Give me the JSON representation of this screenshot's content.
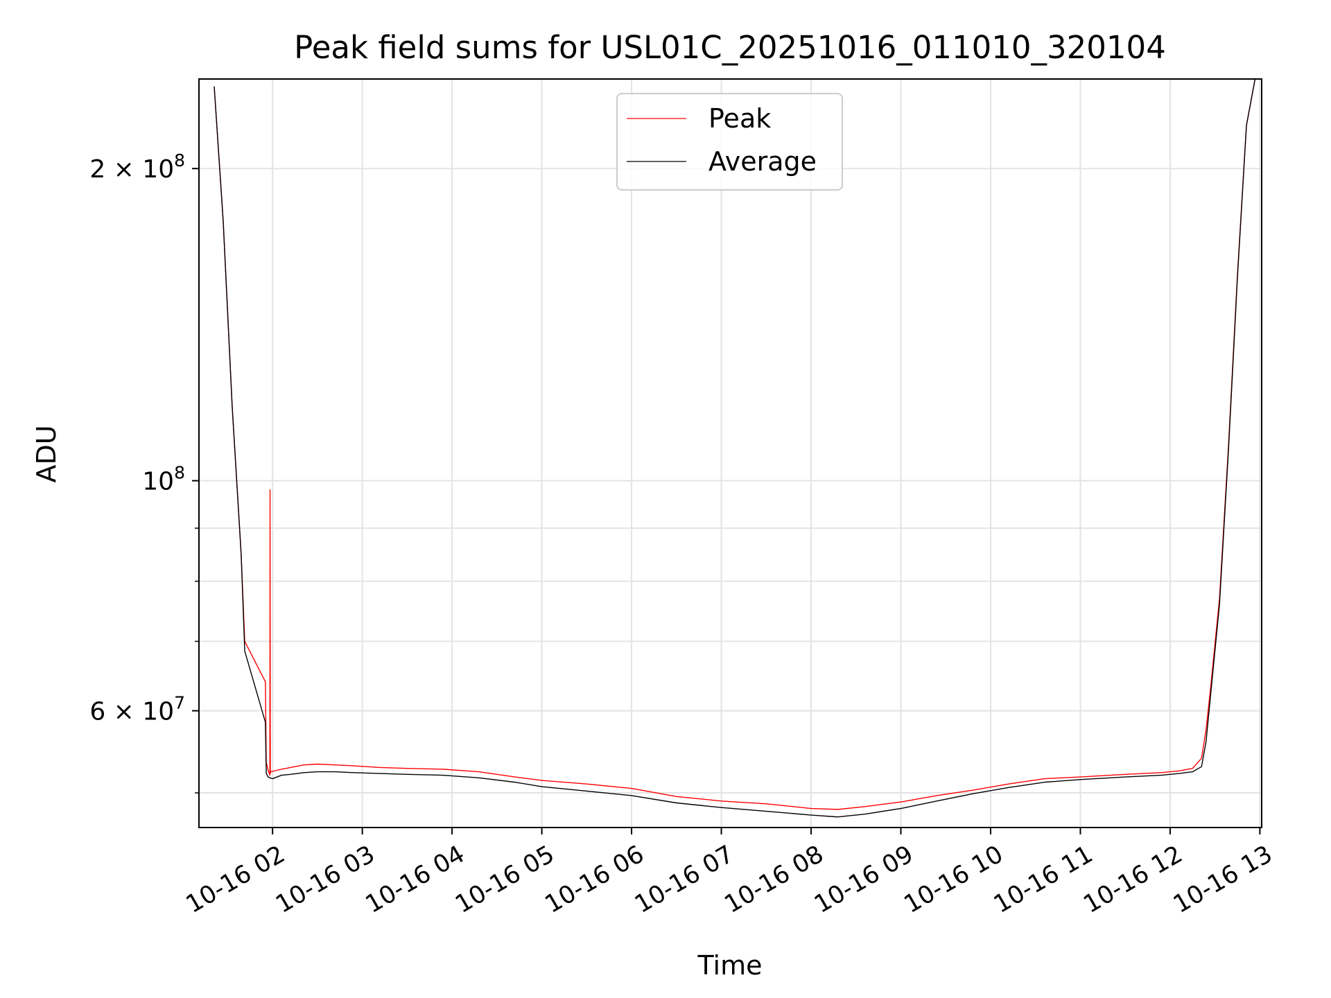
{
  "chart_data": {
    "type": "line",
    "title": "Peak field sums for USL01C_20251016_011010_320104",
    "xlabel": "Time",
    "ylabel": "ADU",
    "yscale": "log",
    "grid": true,
    "legend_position": "top-center",
    "x_unit": "hours since 10-16 00:00",
    "xlim": [
      1.18,
      13.02
    ],
    "ylim": [
      46300000,
      244000000
    ],
    "x_ticks": [
      {
        "value": 2,
        "label": "10-16 02"
      },
      {
        "value": 3,
        "label": "10-16 03"
      },
      {
        "value": 4,
        "label": "10-16 04"
      },
      {
        "value": 5,
        "label": "10-16 05"
      },
      {
        "value": 6,
        "label": "10-16 06"
      },
      {
        "value": 7,
        "label": "10-16 07"
      },
      {
        "value": 8,
        "label": "10-16 08"
      },
      {
        "value": 9,
        "label": "10-16 09"
      },
      {
        "value": 10,
        "label": "10-16 10"
      },
      {
        "value": 11,
        "label": "10-16 11"
      },
      {
        "value": 12,
        "label": "10-16 12"
      },
      {
        "value": 13,
        "label": "10-16 13"
      }
    ],
    "y_ticks_major": [
      {
        "value": 200000000,
        "base": "2 × 10",
        "exp": "8"
      },
      {
        "value": 100000000,
        "base": "10",
        "exp": "8"
      },
      {
        "value": 60000000,
        "base": "6 × 10",
        "exp": "7"
      }
    ],
    "y_ticks_minor": [
      50000000,
      70000000,
      80000000,
      90000000
    ],
    "series": [
      {
        "name": "Peak",
        "color": "#ff0000",
        "x": [
          1.35,
          1.45,
          1.55,
          1.65,
          1.69,
          1.92,
          1.93,
          1.95,
          1.97,
          1.972,
          1.975,
          1.98,
          2.1,
          2.15,
          2.2,
          2.35,
          2.5,
          2.7,
          2.9,
          3.2,
          3.5,
          3.9,
          4.3,
          4.7,
          5.0,
          5.5,
          6.0,
          6.5,
          7.0,
          7.5,
          8.0,
          8.3,
          8.6,
          9.0,
          9.4,
          9.8,
          10.2,
          10.6,
          11.0,
          11.5,
          11.9,
          12.1,
          12.25,
          12.35,
          12.4,
          12.45,
          12.55,
          12.65,
          12.75,
          12.85,
          12.95
        ],
        "values": [
          240000000,
          178000000,
          118000000,
          85000000,
          70000000,
          64000000,
          53500000,
          52600000,
          52000000,
          98000000,
          52200000,
          52400000,
          52700000,
          52800000,
          52900000,
          53200000,
          53300000,
          53200000,
          53100000,
          52900000,
          52800000,
          52700000,
          52400000,
          51800000,
          51400000,
          51000000,
          50500000,
          49600000,
          49100000,
          48800000,
          48300000,
          48200000,
          48500000,
          49000000,
          49700000,
          50300000,
          51000000,
          51600000,
          51800000,
          52100000,
          52300000,
          52500000,
          52800000,
          54000000,
          57500000,
          63000000,
          77000000,
          108000000,
          158000000,
          220000000,
          245000000
        ]
      },
      {
        "name": "Average",
        "color": "#000000",
        "x": [
          1.35,
          1.45,
          1.55,
          1.65,
          1.69,
          1.92,
          1.93,
          1.95,
          1.97,
          2.0,
          2.05,
          2.1,
          2.2,
          2.35,
          2.5,
          2.7,
          2.9,
          3.2,
          3.5,
          3.9,
          4.3,
          4.7,
          5.0,
          5.5,
          6.0,
          6.5,
          7.0,
          7.5,
          8.0,
          8.3,
          8.6,
          9.0,
          9.4,
          9.8,
          10.2,
          10.6,
          11.0,
          11.5,
          11.9,
          12.1,
          12.25,
          12.35,
          12.4,
          12.45,
          12.55,
          12.65,
          12.75,
          12.85,
          12.95
        ],
        "values": [
          240000000,
          178000000,
          118000000,
          85000000,
          68500000,
          58500000,
          52200000,
          51800000,
          51700000,
          51600000,
          51800000,
          52000000,
          52100000,
          52300000,
          52400000,
          52400000,
          52300000,
          52200000,
          52100000,
          52000000,
          51700000,
          51200000,
          50700000,
          50200000,
          49700000,
          48900000,
          48400000,
          48000000,
          47600000,
          47400000,
          47700000,
          48300000,
          49100000,
          49900000,
          50600000,
          51200000,
          51500000,
          51800000,
          52000000,
          52200000,
          52400000,
          53000000,
          56000000,
          62000000,
          76000000,
          107000000,
          157000000,
          220000000,
          245000000
        ]
      }
    ]
  }
}
